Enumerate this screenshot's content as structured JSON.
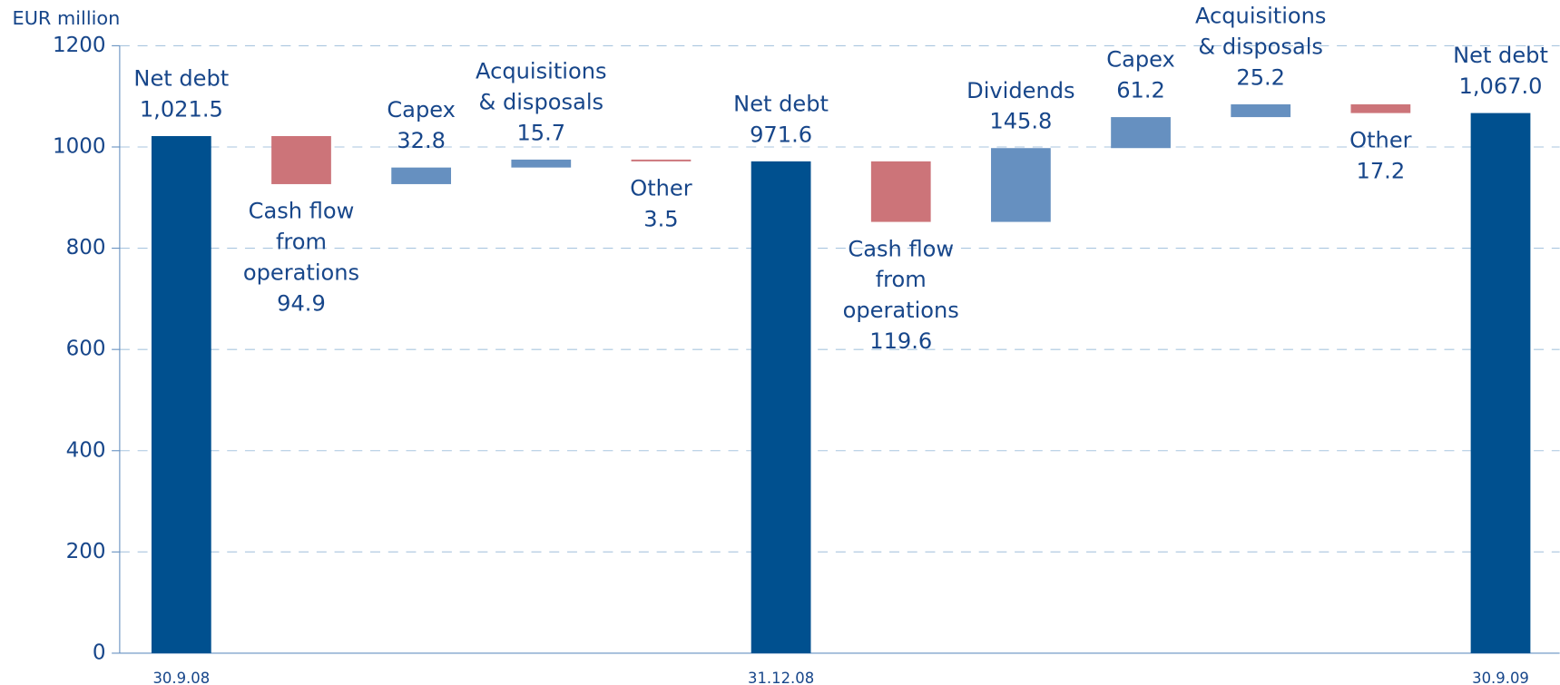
{
  "chart_data": {
    "type": "waterfall",
    "y_label": "EUR million",
    "categories": [
      "30.9.08",
      null,
      null,
      null,
      null,
      "31.12.08",
      null,
      null,
      null,
      null,
      null,
      "30.9.09"
    ],
    "names": [
      [
        "Net debt"
      ],
      [
        "Cash flow",
        "from",
        "operations"
      ],
      [
        "Capex"
      ],
      [
        "Acquisitions",
        "& disposals"
      ],
      [
        "Other"
      ],
      [
        "Net debt"
      ],
      [
        "Cash flow",
        "from",
        "operations"
      ],
      [
        "Dividends"
      ],
      [
        "Capex"
      ],
      [
        "Acquisitions",
        "& disposals"
      ],
      [
        "Other"
      ],
      [
        "Net debt"
      ]
    ],
    "measure": [
      "total",
      "decrease",
      "increase",
      "increase",
      "decrease",
      "total",
      "decrease",
      "increase",
      "increase",
      "increase",
      "decrease",
      "total"
    ],
    "values": [
      1021.5,
      94.9,
      32.8,
      15.7,
      3.5,
      971.6,
      119.6,
      145.8,
      61.2,
      25.2,
      17.2,
      1067.0
    ],
    "value_labels": [
      "1,021.5",
      "94.9",
      "32.8",
      "15.7",
      "3.5",
      "971.6",
      "119.6",
      "145.8",
      "61.2",
      "25.2",
      "17.2",
      "1,067.0"
    ],
    "colors": {
      "total": "#00508f",
      "increase": "#6690c0",
      "decrease": "#cc7479"
    },
    "ylim": [
      0,
      1200
    ],
    "yticks": [
      0,
      200,
      400,
      600,
      800,
      1000,
      1200
    ],
    "grid": true
  }
}
